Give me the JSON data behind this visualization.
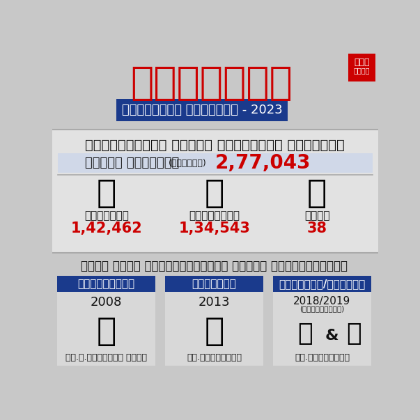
{
  "bg_color": "#c8c8c8",
  "header_bg": "#c8c8c8",
  "title_kannada": "ಕರ್ನಾಟಕ",
  "subtitle_kannada": "ವಿಧಾನಸಭೆ ಚುನಾವಣೆ - 2023",
  "subtitle_bg": "#1a3a8c",
  "constituency_title": "ಮಹಾಲಕ್ಷ್ಮಿ ಲೇಔಟ್ ವಿಧಾನಸಭೆ ಕ್ಷೇತ್ರ",
  "total_voters_label": "ಒಟ್ಟು ಮತದಾರರು",
  "total_voters_approx": "(ಅಂದಾಜು)",
  "total_voters_value": "2,77,043",
  "male_label": "ಪುರುಷರು",
  "male_value": "1,42,462",
  "female_label": "ಮಹಿಳೆಯರು",
  "female_value": "1,34,543",
  "other_label": "ಇತರೆ",
  "other_value": "38",
  "section3_title": "ಕಳೆದ ಮೂರು ಚುನಾವಣೆಯಲ್ಲಿ ಗೆದ್ದ ಅಭ್ಯರ್ಥಿಗಳು",
  "party1_name": "ಕಾಂಗ್ರೆಸ್",
  "party1_year": "2008",
  "party1_candidate": "ನೇ.ಲ.ನರೇಂದ್ರ ಬಾಬು",
  "party2_name": "ಜೆಡಿಎಸ್",
  "party2_year": "2013",
  "party2_candidate": "ಕೆ.ಗೋಪಾಲಯ್ಯ",
  "party3_name": "ಜೆಡಿಎಸ್/ಬಿಜೆಪಿ",
  "party3_year": "2018/2019",
  "party3_year_sub": "(ಉಪಚುನಾವಣೆ)",
  "party3_candidate": "ಕೆ.ಗೋಪಾಲಯ್ಯ",
  "party_header_bg": "#1a3a8c",
  "card_bg": "#d8d8d8",
  "red_color": "#cc0000",
  "dark_text": "#111111",
  "title_red": "#cc0000",
  "etv_bg": "#cc0000",
  "sect2_bg": "#e2e2e2",
  "white": "#ffffff",
  "divider": "#aaaaaa"
}
